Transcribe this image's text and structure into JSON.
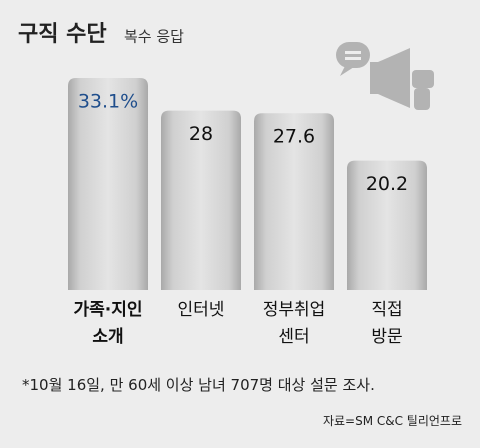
{
  "chart_data": {
    "type": "bar",
    "title": "구직 수단",
    "subtitle": "복수 응답",
    "categories": [
      "가족·지인\n소개",
      "인터넷",
      "정부취업\n센터",
      "직접\n방문"
    ],
    "values": [
      33.1,
      28,
      27.6,
      20.2
    ],
    "value_labels": [
      "33.1%",
      "28",
      "27.6",
      "20.2"
    ],
    "color": "#c9c9c9",
    "highlight_index": 0,
    "highlight_color": "#1f4e8c",
    "footnote": "*10월 16일, 만 60세 이상 남녀 707명 대상 설문 조사.",
    "source": "자료=SM C&C 틸리언프로"
  }
}
